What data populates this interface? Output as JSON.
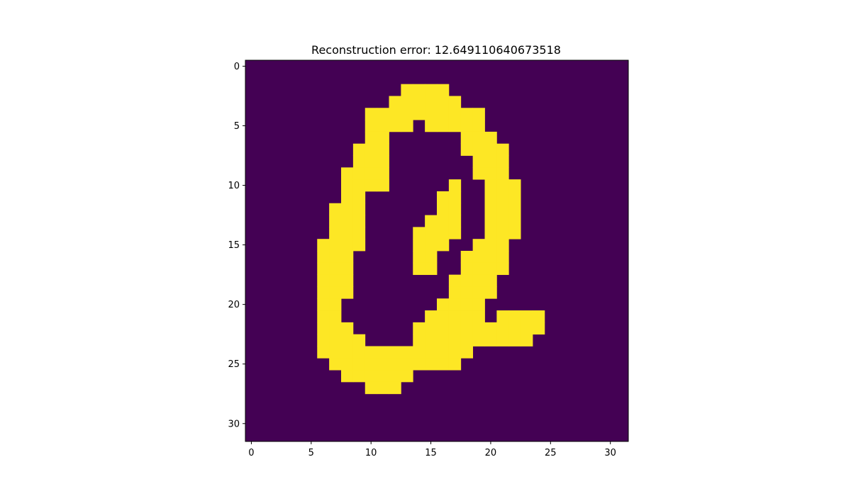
{
  "chart_data": {
    "type": "heatmap",
    "title": "Reconstruction error: 12.649110640673518",
    "xlabel": "",
    "ylabel": "",
    "xlim": [
      -0.5,
      31.5
    ],
    "ylim": [
      31.5,
      -0.5
    ],
    "x_ticks": [
      0,
      5,
      10,
      15,
      20,
      25,
      30
    ],
    "y_ticks": [
      0,
      5,
      10,
      15,
      20,
      25,
      30
    ],
    "grid": false,
    "colormap": "viridis",
    "background_color": "#440154",
    "foreground_color": "#fde725",
    "rows": 32,
    "cols": 32,
    "on_runs_by_row": [
      [],
      [],
      [
        [
          13,
          16
        ]
      ],
      [
        [
          12,
          17
        ]
      ],
      [
        [
          10,
          19
        ]
      ],
      [
        [
          10,
          13
        ],
        [
          15,
          19
        ]
      ],
      [
        [
          10,
          11
        ],
        [
          18,
          20
        ]
      ],
      [
        [
          9,
          11
        ],
        [
          18,
          21
        ]
      ],
      [
        [
          9,
          11
        ],
        [
          19,
          21
        ]
      ],
      [
        [
          8,
          11
        ],
        [
          19,
          21
        ]
      ],
      [
        [
          8,
          11
        ],
        [
          17,
          17
        ],
        [
          20,
          22
        ]
      ],
      [
        [
          8,
          9
        ],
        [
          16,
          17
        ],
        [
          20,
          22
        ]
      ],
      [
        [
          7,
          9
        ],
        [
          16,
          17
        ],
        [
          20,
          22
        ]
      ],
      [
        [
          7,
          9
        ],
        [
          15,
          17
        ],
        [
          20,
          22
        ]
      ],
      [
        [
          7,
          9
        ],
        [
          14,
          17
        ],
        [
          20,
          22
        ]
      ],
      [
        [
          6,
          9
        ],
        [
          14,
          16
        ],
        [
          19,
          21
        ]
      ],
      [
        [
          6,
          8
        ],
        [
          14,
          15
        ],
        [
          18,
          21
        ]
      ],
      [
        [
          6,
          8
        ],
        [
          14,
          15
        ],
        [
          18,
          21
        ]
      ],
      [
        [
          6,
          8
        ],
        [
          17,
          20
        ]
      ],
      [
        [
          6,
          8
        ],
        [
          17,
          20
        ]
      ],
      [
        [
          6,
          7
        ],
        [
          16,
          19
        ]
      ],
      [
        [
          6,
          7
        ],
        [
          15,
          19
        ],
        [
          21,
          24
        ]
      ],
      [
        [
          6,
          8
        ],
        [
          14,
          20
        ],
        [
          21,
          24
        ]
      ],
      [
        [
          6,
          9
        ],
        [
          14,
          23
        ]
      ],
      [
        [
          6,
          18
        ]
      ],
      [
        [
          7,
          17
        ]
      ],
      [
        [
          8,
          13
        ]
      ],
      [
        [
          10,
          12
        ]
      ],
      [],
      [],
      [],
      []
    ]
  }
}
